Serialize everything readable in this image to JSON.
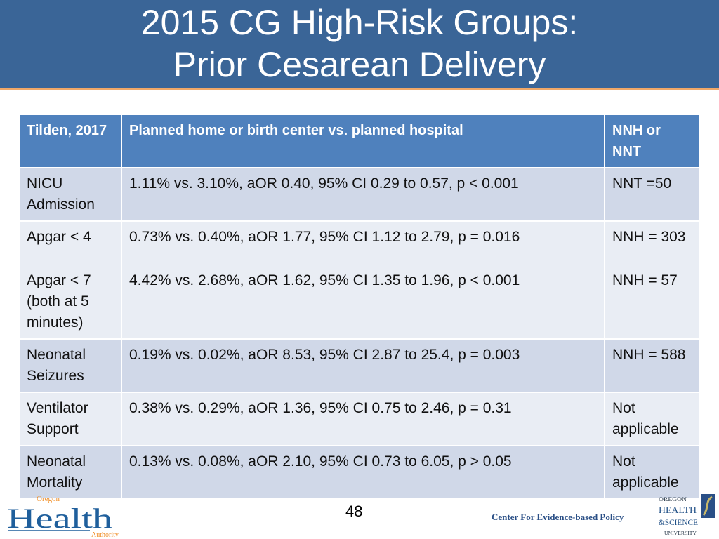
{
  "title": {
    "line1": "2015 CG High-Risk Groups:",
    "line2": "Prior Cesarean Delivery"
  },
  "table": {
    "headers": [
      "Tilden, 2017",
      "Planned home or birth center vs. planned hospital",
      "NNH or NNT"
    ],
    "rows": [
      {
        "outcome": "NICU Admission",
        "result": "1.11% vs. 3.10%, aOR 0.40, 95% CI 0.29 to 0.57, p < 0.001",
        "nn": "NNT =50"
      },
      {
        "outcome": "Apgar < 4",
        "result": "0.73% vs. 0.40%, aOR 1.77, 95% CI 1.12 to 2.79, p = 0.016",
        "nn": "NNH = 303",
        "outcome2": "Apgar < 7 (both at 5 minutes)",
        "result2": "4.42% vs. 2.68%, aOR 1.62, 95% CI 1.35 to 1.96, p < 0.001",
        "nn2": "NNH = 57"
      },
      {
        "outcome": "Neonatal Seizures",
        "result": "0.19% vs. 0.02%, aOR 8.53, 95% CI 2.87 to 25.4, p = 0.003",
        "nn": "NNH = 588"
      },
      {
        "outcome": "Ventilator Support",
        "result": "0.38% vs. 0.29%, aOR 1.36, 95% CI 0.75 to 2.46, p = 0.31",
        "nn": "Not applicable"
      },
      {
        "outcome": "Neonatal Mortality",
        "result": "0.13% vs. 0.08%, aOR 2.10, 95% CI 0.73 to 6.05, p > 0.05",
        "nn": "Not applicable"
      }
    ]
  },
  "footer": {
    "page": "48",
    "center": "Center For Evidence-based Policy",
    "oha_logo": "Oregon Health Authority",
    "ohsu_logo": "OREGON HEALTH & SCIENCE UNIVERSITY"
  },
  "colors": {
    "header_band": "#3a6597",
    "table_header": "#4f81bd",
    "row_dark": "#d0d8e8",
    "row_light": "#e9edf4"
  }
}
